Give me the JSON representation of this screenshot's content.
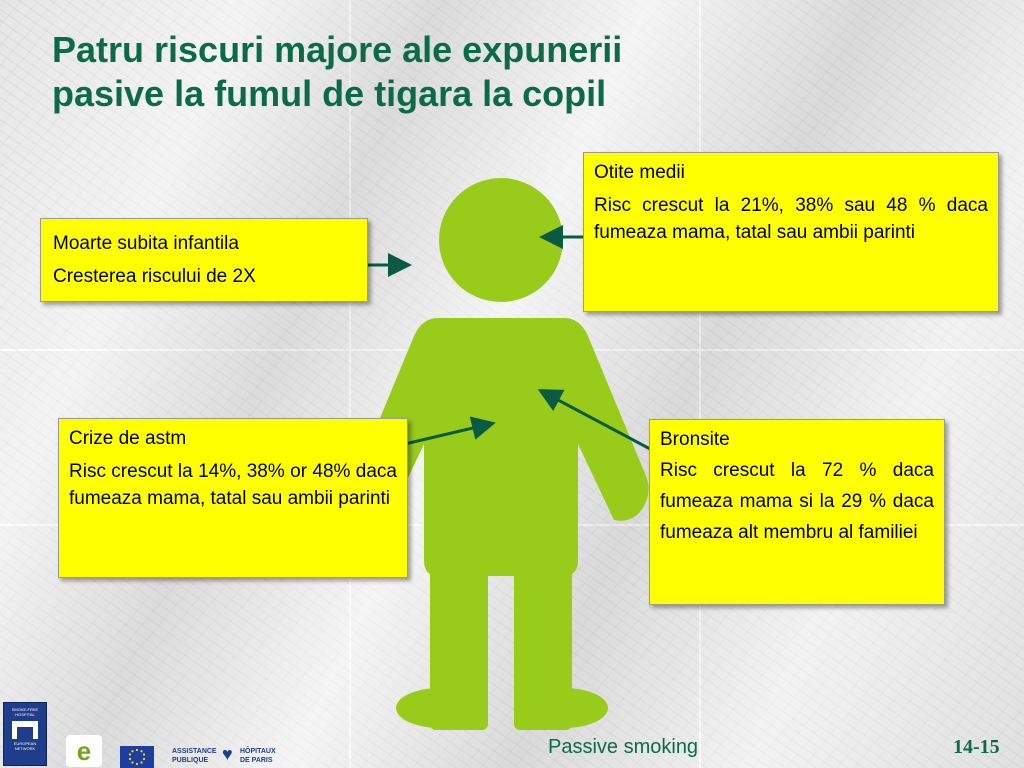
{
  "slide": {
    "title_line1": "Patru riscuri majore ale expunerii",
    "title_line2": "pasive la fumul de tigara la copil"
  },
  "boxes": {
    "moarte": {
      "line1": "Moarte subita infantila",
      "line2": "Cresterea riscului de 2X"
    },
    "otite": {
      "heading": "Otite medii",
      "text": "Risc crescut  la 21%, 38% sau 48 % daca fumeaza mama, tatal sau ambii parinti"
    },
    "astm": {
      "heading": "Crize de astm",
      "text": "Risc crescut la 14%, 38% or 48%  daca fumeaza mama, tatal sau ambii parinti"
    },
    "bronsite": {
      "heading": "Bronsite",
      "text": "Risc crescut la  72 % daca fumeaza mama  si la  29 % daca fumeaza alt membru al familiei"
    }
  },
  "footer": {
    "topic": "Passive smoking",
    "page": "14-15"
  },
  "logos": {
    "network_lines": [
      "SMOKE-FREE",
      "HOSPITAL",
      "EUROPEAN",
      "NETWORK"
    ],
    "ap_left": [
      "ASSISTANCE",
      "PUBLIQUE"
    ],
    "ap_right": [
      "HÔPITAUX",
      "DE PARIS"
    ]
  },
  "colors": {
    "title": "#0b6b48",
    "box_fill": "#ffff00",
    "figure": "#99cc1a",
    "arrow": "#0b5a44"
  }
}
